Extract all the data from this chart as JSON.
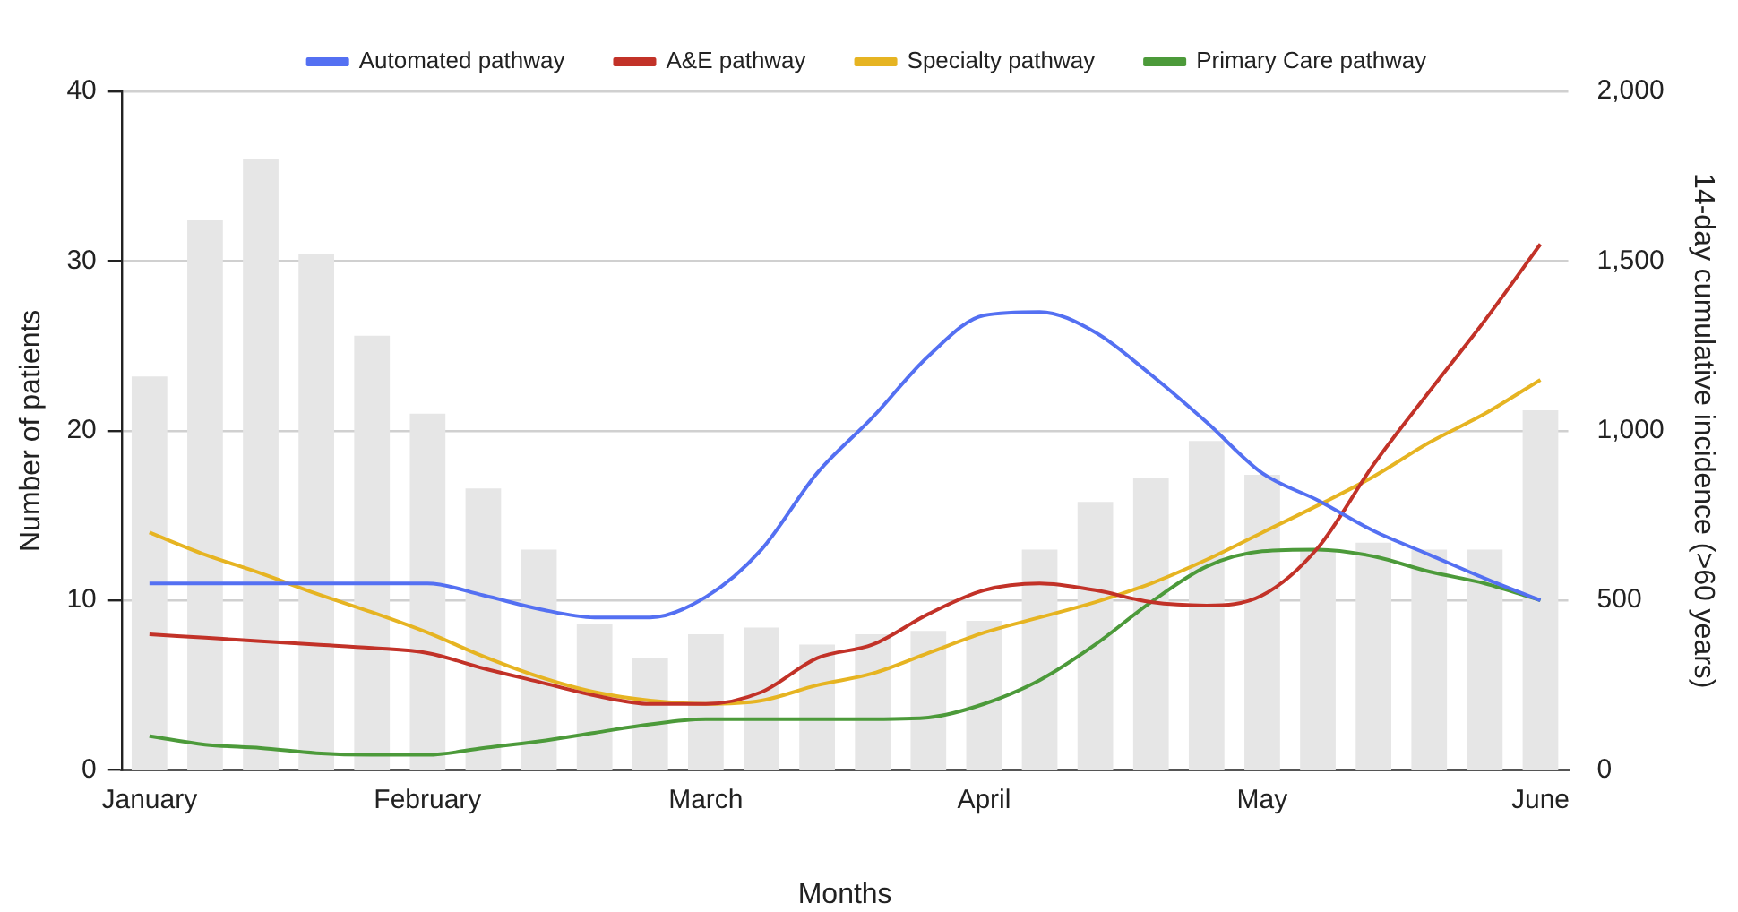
{
  "chart_data": {
    "type": "bar",
    "xlabel": "Months",
    "ylabel": "Number of patients",
    "y2label": "14-day cumulative incidence (>60 years)",
    "categories": [
      "January",
      null,
      null,
      null,
      null,
      "February",
      null,
      null,
      null,
      null,
      "March",
      null,
      null,
      null,
      null,
      "April",
      null,
      null,
      null,
      null,
      "May",
      null,
      null,
      null,
      null,
      "June"
    ],
    "series": [
      {
        "type": "line",
        "name": "Automated pathway",
        "color": "#5470f2",
        "values": [
          11,
          11,
          11,
          11,
          11,
          11,
          10.3,
          9.5,
          9,
          9,
          10.2,
          13,
          17.5,
          20.8,
          24.4,
          26.8,
          27,
          25.8,
          23.3,
          20.5,
          17.5,
          15.9,
          14.1,
          12.7,
          11.3,
          10
        ]
      },
      {
        "type": "line",
        "name": "A&E pathway",
        "color": "#c23228",
        "values": [
          8,
          7.8,
          7.6,
          7.4,
          7.2,
          6.9,
          6,
          5.2,
          4.4,
          3.9,
          3.9,
          4.6,
          6.6,
          7.4,
          9.2,
          10.6,
          11,
          10.6,
          9.9,
          9.7,
          10.3,
          13.1,
          18,
          22.3,
          26.5,
          31
        ]
      },
      {
        "type": "line",
        "name": "Specialty pathway",
        "color": "#e6b422",
        "values": [
          14,
          12.7,
          11.6,
          10.4,
          9.3,
          8.1,
          6.7,
          5.5,
          4.6,
          4.1,
          3.9,
          4.1,
          5,
          5.7,
          6.9,
          8.1,
          9,
          9.9,
          11,
          12.4,
          14,
          15.6,
          17.3,
          19.3,
          21,
          23
        ]
      },
      {
        "type": "line",
        "name": "Primary Care pathway",
        "color": "#4c9a3a",
        "values": [
          2,
          1.5,
          1.3,
          1,
          0.9,
          0.9,
          1.3,
          1.7,
          2.2,
          2.7,
          3,
          3,
          3,
          3,
          3.1,
          3.9,
          5.3,
          7.4,
          9.9,
          12,
          12.9,
          13,
          12.6,
          11.7,
          11,
          10
        ]
      },
      {
        "axis": "y2",
        "color": "#e6e6e6",
        "values": [
          1160,
          1620,
          1800,
          1520,
          1280,
          1050,
          830,
          650,
          430,
          330,
          400,
          420,
          370,
          400,
          410,
          440,
          650,
          790,
          860,
          970,
          870,
          650,
          670,
          650,
          650,
          1060
        ]
      }
    ],
    "ylim": [
      0,
      40
    ],
    "yticks": [
      0,
      10,
      20,
      30,
      40
    ],
    "y2lim": [
      0,
      2000
    ],
    "y2ticks": [
      0,
      500,
      {
        "value": 1000,
        "label": "1,000"
      },
      {
        "value": 1500,
        "label": "1,500"
      },
      {
        "value": 2000,
        "label": "2,000"
      }
    ],
    "grid": "y",
    "legend": "top",
    "marker": "none",
    "line_style": "solid"
  }
}
